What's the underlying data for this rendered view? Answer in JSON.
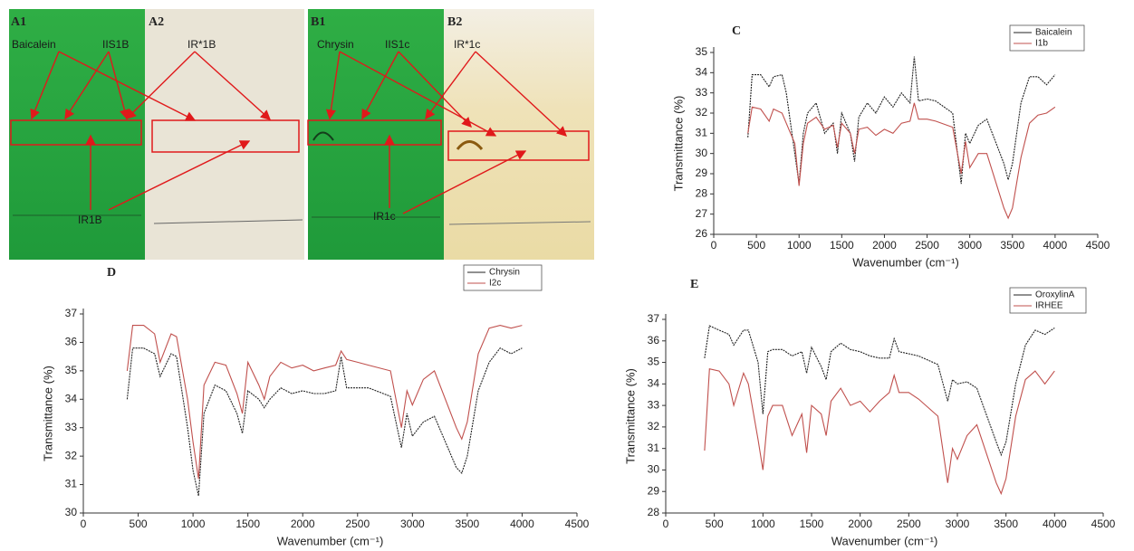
{
  "tlc": {
    "panels": [
      "A1",
      "A2",
      "B1",
      "B2"
    ],
    "labels": [
      "Baicalein",
      "IIS1B",
      "IR*1B",
      "IR1B",
      "Chrysin",
      "IIS1c",
      "IR*1c",
      "IR1c"
    ]
  },
  "chart_data": [
    {
      "type": "line",
      "title": "C",
      "x_label": "Wavenumber (cm⁻¹)",
      "y_label": "Transmittance (%)",
      "legend": "upper right",
      "grid": false,
      "xlim": [
        0,
        4500
      ],
      "xticks": [
        0,
        500,
        1000,
        1500,
        2000,
        2500,
        3000,
        3500,
        4000,
        4500
      ],
      "ylim": [
        26,
        35
      ],
      "yticks": [
        26,
        27,
        28,
        29,
        30,
        31,
        32,
        33,
        34,
        35
      ],
      "x": [
        400,
        450,
        550,
        650,
        700,
        800,
        850,
        950,
        1000,
        1050,
        1100,
        1200,
        1300,
        1400,
        1450,
        1500,
        1600,
        1650,
        1700,
        1800,
        1900,
        2000,
        2100,
        2200,
        2300,
        2350,
        2400,
        2500,
        2600,
        2800,
        2900,
        2950,
        3000,
        3100,
        3200,
        3400,
        3450,
        3500,
        3600,
        3700,
        3800,
        3900,
        4000
      ],
      "series": [
        {
          "name": "Baicalein",
          "color": "#222222",
          "values": [
            30.8,
            33.9,
            33.9,
            33.3,
            33.8,
            33.9,
            33.0,
            30.0,
            28.5,
            31.0,
            32.0,
            32.5,
            31.0,
            31.5,
            30.0,
            32.0,
            31.0,
            29.6,
            31.8,
            32.5,
            32.0,
            32.8,
            32.3,
            33.0,
            32.5,
            34.8,
            32.6,
            32.7,
            32.6,
            32.0,
            28.5,
            31.0,
            30.5,
            31.4,
            31.7,
            29.5,
            28.7,
            29.5,
            32.5,
            33.8,
            33.8,
            33.4,
            33.9
          ]
        },
        {
          "name": "I1b",
          "color": "#c0504d",
          "values": [
            31.0,
            32.3,
            32.2,
            31.6,
            32.2,
            32.0,
            31.5,
            30.5,
            28.4,
            30.5,
            31.5,
            31.8,
            31.2,
            31.4,
            30.3,
            31.5,
            31.0,
            30.0,
            31.2,
            31.3,
            30.9,
            31.2,
            31.0,
            31.5,
            31.6,
            32.5,
            31.7,
            31.7,
            31.6,
            31.3,
            29.0,
            30.6,
            29.3,
            30.0,
            30.0,
            27.3,
            26.8,
            27.3,
            29.8,
            31.5,
            31.9,
            32.0,
            32.3
          ]
        }
      ]
    },
    {
      "type": "line",
      "title": "D",
      "x_label": "Wavenumber (cm⁻¹)",
      "y_label": "Transmittance (%)",
      "legend": "upper right",
      "grid": false,
      "xlim": [
        0,
        4500
      ],
      "xticks": [
        0,
        500,
        1000,
        1500,
        2000,
        2500,
        3000,
        3500,
        4000,
        4500
      ],
      "ylim": [
        30,
        37
      ],
      "yticks": [
        30,
        31,
        32,
        33,
        34,
        35,
        36,
        37
      ],
      "x": [
        400,
        450,
        550,
        650,
        700,
        800,
        850,
        950,
        1000,
        1050,
        1100,
        1200,
        1300,
        1400,
        1450,
        1500,
        1600,
        1650,
        1700,
        1800,
        1900,
        2000,
        2100,
        2200,
        2300,
        2350,
        2400,
        2500,
        2600,
        2800,
        2900,
        2950,
        3000,
        3100,
        3200,
        3400,
        3450,
        3500,
        3600,
        3700,
        3800,
        3900,
        4000
      ],
      "series": [
        {
          "name": "Chrysin",
          "color": "#222222",
          "values": [
            34.0,
            35.8,
            35.8,
            35.6,
            34.8,
            35.6,
            35.5,
            33.0,
            31.5,
            30.6,
            33.5,
            34.5,
            34.3,
            33.5,
            32.8,
            34.3,
            34.0,
            33.7,
            34.0,
            34.4,
            34.2,
            34.3,
            34.2,
            34.2,
            34.3,
            35.5,
            34.4,
            34.4,
            34.4,
            34.1,
            32.3,
            33.5,
            32.7,
            33.2,
            33.4,
            31.6,
            31.4,
            32.0,
            34.3,
            35.3,
            35.8,
            35.6,
            35.8
          ]
        },
        {
          "name": "I2c",
          "color": "#c0504d",
          "values": [
            35.0,
            36.6,
            36.6,
            36.3,
            35.3,
            36.3,
            36.2,
            34.0,
            32.5,
            31.2,
            34.5,
            35.3,
            35.2,
            34.2,
            33.5,
            35.3,
            34.5,
            34.0,
            34.8,
            35.3,
            35.1,
            35.2,
            35.0,
            35.1,
            35.2,
            35.7,
            35.4,
            35.3,
            35.2,
            35.0,
            33.0,
            34.3,
            33.8,
            34.7,
            35.0,
            33.0,
            32.6,
            33.2,
            35.6,
            36.5,
            36.6,
            36.5,
            36.6
          ]
        }
      ]
    },
    {
      "type": "line",
      "title": "E",
      "x_label": "Wavenumber (cm⁻¹)",
      "y_label": "Transmittance (%)",
      "legend": "upper right",
      "grid": false,
      "xlim": [
        0,
        4500
      ],
      "xticks": [
        0,
        500,
        1000,
        1500,
        2000,
        2500,
        3000,
        3500,
        4000,
        4500
      ],
      "ylim": [
        28,
        37
      ],
      "yticks": [
        28,
        29,
        30,
        31,
        32,
        33,
        34,
        35,
        36,
        37
      ],
      "x": [
        400,
        450,
        550,
        650,
        700,
        800,
        850,
        950,
        1000,
        1050,
        1100,
        1200,
        1300,
        1400,
        1450,
        1500,
        1600,
        1650,
        1700,
        1800,
        1900,
        2000,
        2100,
        2200,
        2300,
        2350,
        2400,
        2500,
        2600,
        2800,
        2900,
        2950,
        3000,
        3100,
        3200,
        3400,
        3450,
        3500,
        3600,
        3700,
        3800,
        3900,
        4000
      ],
      "series": [
        {
          "name": "OroxylinA",
          "color": "#222222",
          "values": [
            35.2,
            36.7,
            36.5,
            36.3,
            35.8,
            36.5,
            36.5,
            35.0,
            32.6,
            35.5,
            35.6,
            35.6,
            35.3,
            35.5,
            34.5,
            35.7,
            34.8,
            34.2,
            35.5,
            35.9,
            35.6,
            35.5,
            35.3,
            35.2,
            35.2,
            36.1,
            35.5,
            35.4,
            35.3,
            34.9,
            33.2,
            34.2,
            34.0,
            34.1,
            33.8,
            31.3,
            30.7,
            31.3,
            34.0,
            35.8,
            36.5,
            36.3,
            36.6
          ]
        },
        {
          "name": "IRHEE",
          "color": "#c0504d",
          "values": [
            30.9,
            34.7,
            34.6,
            34.0,
            33.0,
            34.5,
            34.0,
            31.4,
            30.0,
            32.5,
            33.0,
            33.0,
            31.6,
            32.6,
            30.8,
            33.0,
            32.6,
            31.6,
            33.2,
            33.8,
            33.0,
            33.2,
            32.7,
            33.2,
            33.6,
            34.4,
            33.6,
            33.6,
            33.3,
            32.5,
            29.4,
            31.0,
            30.5,
            31.6,
            32.1,
            29.4,
            28.9,
            29.6,
            32.5,
            34.2,
            34.6,
            34.0,
            34.6
          ]
        }
      ]
    }
  ]
}
